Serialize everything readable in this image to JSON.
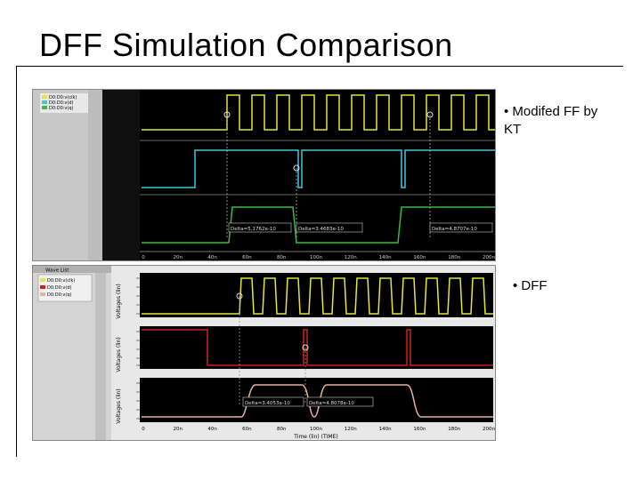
{
  "slide": {
    "title": "DFF Simulation Comparison",
    "bullet_top": "• Modifed FF by KT",
    "bullet_bottom": "• DFF"
  },
  "top_screenshot": {
    "wave_list": [
      "D0:D0:v(clk)",
      "D0:D0:v(d)",
      "D0:D0:v(q)"
    ],
    "wave_colors": [
      "#e6e63a",
      "#45c8dc",
      "#3cb83c"
    ],
    "x_ticks": [
      "0",
      "20n",
      "40n",
      "60n",
      "80n",
      "100n",
      "120n",
      "140n",
      "160n",
      "180n",
      "200n"
    ],
    "measure_labels": [
      "Delta=5.1762e-10",
      "Delta=3.4683e-10",
      "Delta=4.8707e-10"
    ]
  },
  "bottom_screenshot": {
    "wave_list_title": "Wave List",
    "wave_list": [
      "D0:D0:v(clk)",
      "D0:D0:v(d)",
      "D0:D0:v(q)"
    ],
    "wave_colors": [
      "#e6e63a",
      "#d02020",
      "#e8b0a0"
    ],
    "y_axis_label": "Voltages (lin)",
    "x_ticks": [
      "0",
      "20n",
      "40n",
      "60n",
      "80n",
      "100n",
      "120n",
      "140n",
      "160n",
      "180n",
      "200n"
    ],
    "x_axis_label": "Time (lin) (TIME)",
    "measure_labels": [
      "Delta=3.4053e-10",
      "Delta=4.8078e-10"
    ]
  }
}
